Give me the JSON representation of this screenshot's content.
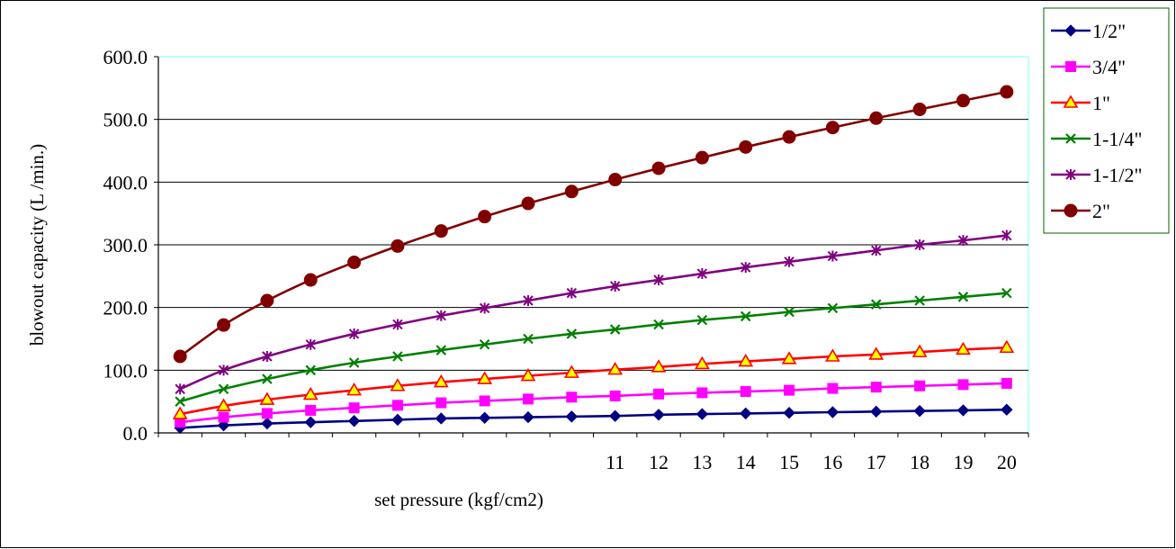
{
  "chart_data": {
    "type": "line",
    "title": "",
    "xlabel": "set pressure (kgf/cm2)",
    "ylabel": "blowout capacity (L /min.)",
    "x": [
      1,
      2,
      3,
      4,
      5,
      6,
      7,
      8,
      9,
      10,
      11,
      12,
      13,
      14,
      15,
      16,
      17,
      18,
      19,
      20
    ],
    "x_tick_labels": [
      "",
      "",
      "",
      "",
      "",
      "",
      "",
      "",
      "",
      "",
      "11",
      "12",
      "13",
      "14",
      "15",
      "16",
      "17",
      "18",
      "19",
      "20"
    ],
    "ylim": [
      0,
      600
    ],
    "y_ticks": [
      "0.0",
      "100.0",
      "200.0",
      "300.0",
      "400.0",
      "500.0",
      "600.0"
    ],
    "grid": "horizontal",
    "legend_position": "top-right",
    "series": [
      {
        "name": "1/2\"",
        "color": "#000080",
        "marker": "diamond",
        "values": [
          8,
          12,
          15,
          17,
          19,
          21,
          23,
          24,
          25,
          26,
          27,
          29,
          30,
          31,
          32,
          33,
          34,
          35,
          36,
          37
        ]
      },
      {
        "name": "3/4\"",
        "color": "#ff00ff",
        "marker": "square",
        "values": [
          17,
          25,
          31,
          36,
          40,
          44,
          48,
          51,
          54,
          57,
          59,
          62,
          64,
          66,
          68,
          71,
          73,
          75,
          77,
          79
        ]
      },
      {
        "name": "1\"",
        "color": "#ff0000",
        "marker": "triangle",
        "values": [
          30,
          43,
          53,
          61,
          68,
          75,
          81,
          86,
          91,
          96,
          101,
          105,
          110,
          114,
          118,
          122,
          125,
          129,
          133,
          136
        ]
      },
      {
        "name": "1-1/4\"",
        "color": "#008000",
        "marker": "x",
        "values": [
          50,
          70,
          86,
          100,
          112,
          122,
          132,
          141,
          150,
          158,
          165,
          173,
          180,
          186,
          193,
          199,
          205,
          211,
          217,
          223
        ]
      },
      {
        "name": "1-1/2\"",
        "color": "#800080",
        "marker": "star",
        "values": [
          70,
          100,
          122,
          141,
          158,
          173,
          187,
          199,
          211,
          223,
          234,
          244,
          254,
          264,
          273,
          282,
          291,
          300,
          307,
          315
        ]
      },
      {
        "name": "2\"",
        "color": "#800000",
        "marker": "circle",
        "values": [
          122,
          172,
          211,
          244,
          272,
          298,
          322,
          345,
          366,
          385,
          404,
          422,
          439,
          456,
          472,
          487,
          502,
          516,
          530,
          544
        ]
      }
    ]
  }
}
